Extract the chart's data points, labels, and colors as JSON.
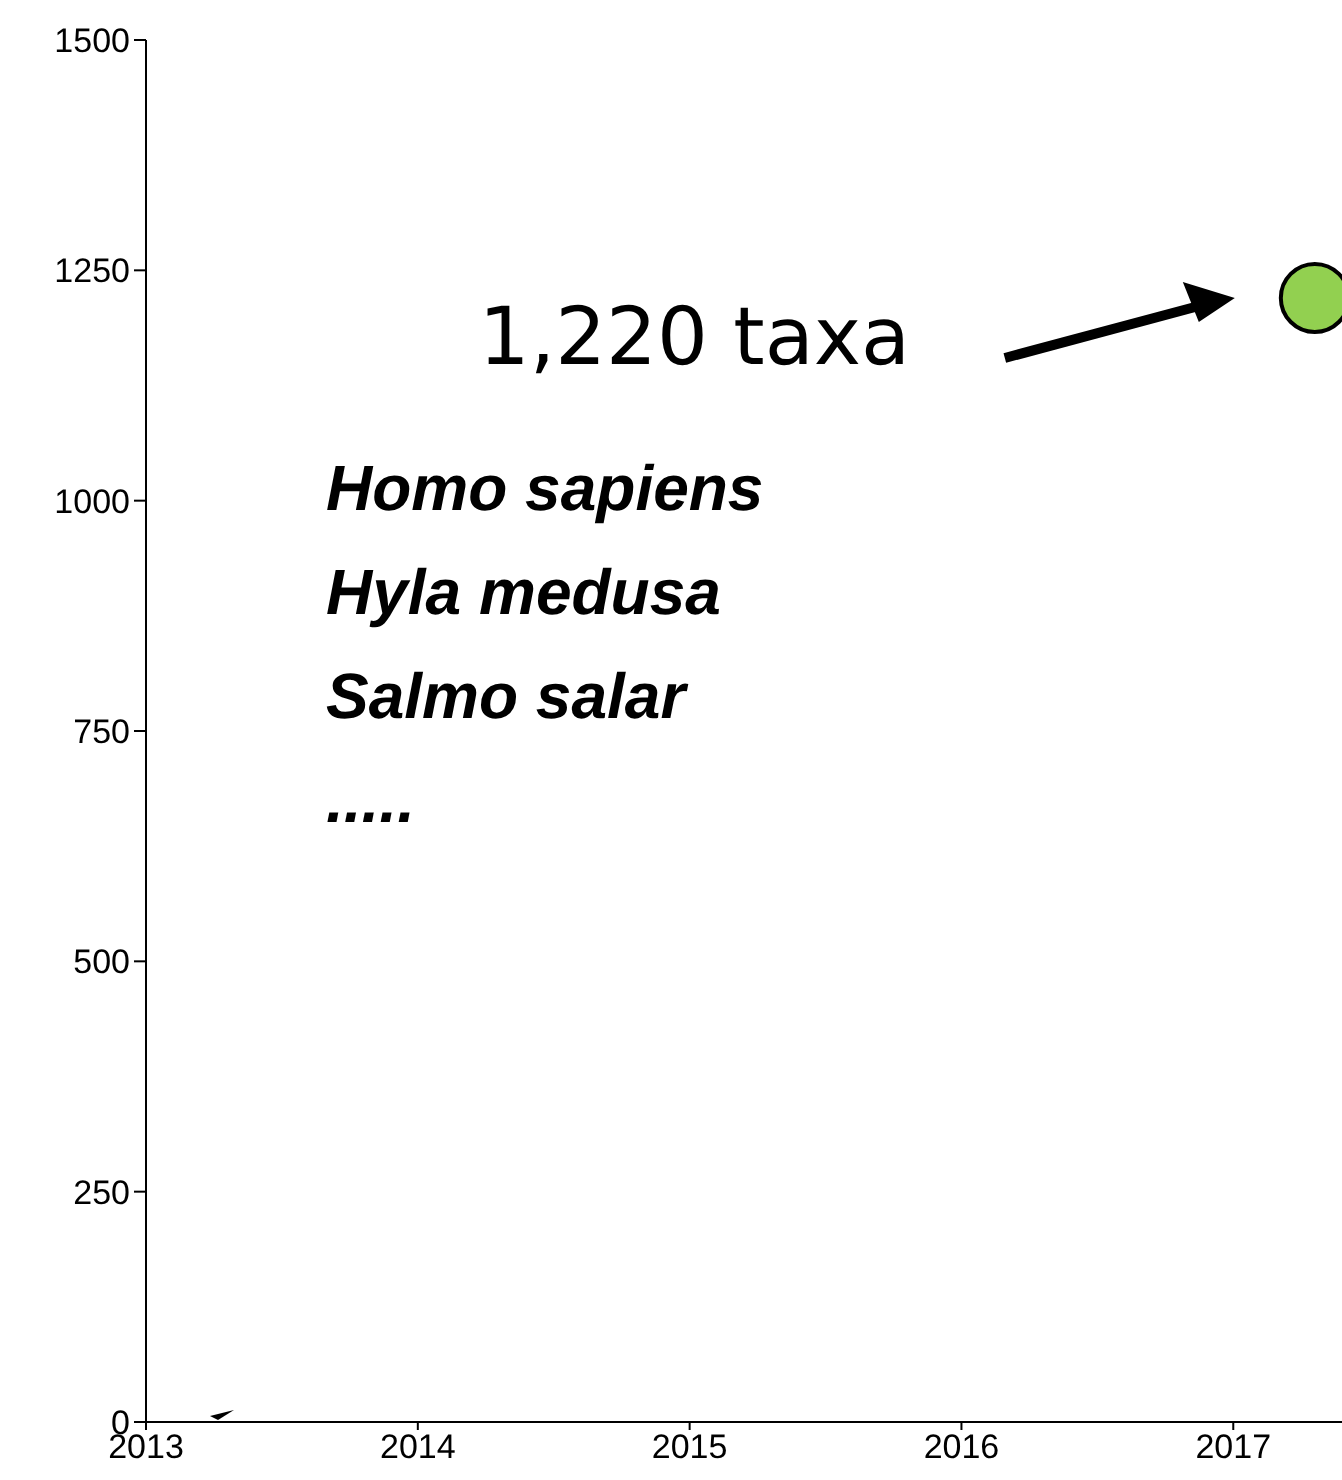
{
  "chart_data": {
    "type": "scatter",
    "x": [
      2017.3
    ],
    "values": [
      1220
    ],
    "color": "#92d050",
    "marker": "circle",
    "xlim": [
      2013,
      2017.4
    ],
    "xticks": [
      2013,
      2014,
      2015,
      2016,
      2017
    ],
    "ylim": [
      0,
      1500
    ],
    "yticks": [
      0,
      250,
      500,
      750,
      1000,
      1250,
      1500
    ],
    "grid": false,
    "annotations": [
      "1,220 taxa",
      "Homo sapiens",
      "Hyla medusa",
      "Salmo salar",
      "....."
    ]
  }
}
